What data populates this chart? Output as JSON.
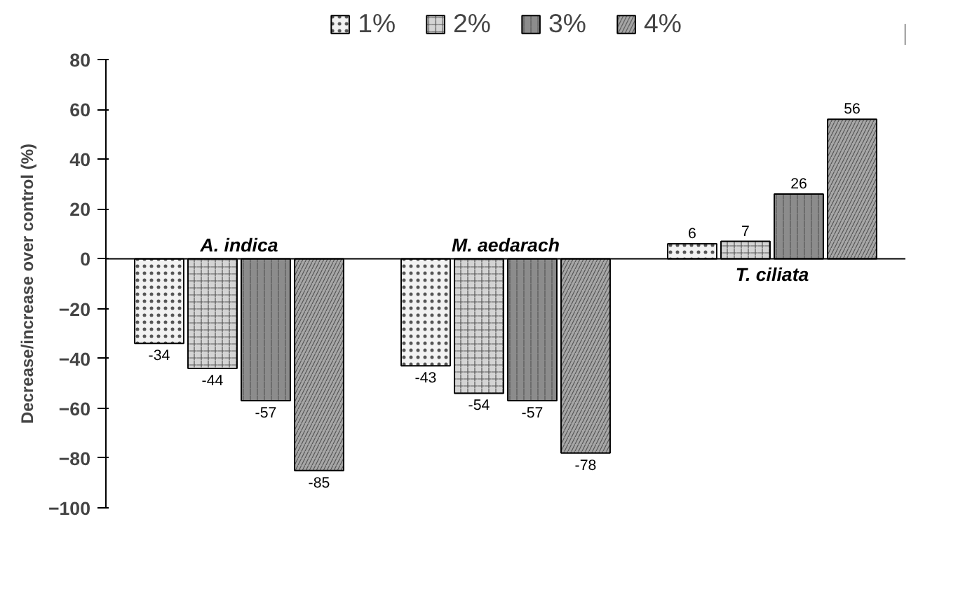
{
  "chart_data": {
    "type": "bar",
    "ylabel": "Decrease/increase over control (%)",
    "categories": [
      "A. indica",
      "M. aedarach",
      "T. ciliata"
    ],
    "series": [
      {
        "name": "1%",
        "color": "#f2f2f2",
        "values": [
          -34,
          -43,
          6
        ]
      },
      {
        "name": "2%",
        "color": "#d4d4d4",
        "values": [
          -44,
          -54,
          7
        ]
      },
      {
        "name": "3%",
        "color": "#8c8c8c",
        "values": [
          -57,
          -57,
          26
        ]
      },
      {
        "name": "4%",
        "color": "#a6a6a6",
        "values": [
          -85,
          -78,
          56
        ]
      }
    ],
    "ylim": [
      -100,
      80
    ],
    "yticks": [
      -100,
      -80,
      -60,
      -40,
      -20,
      0,
      20,
      40,
      60,
      80
    ],
    "data_labels": true,
    "grid": false,
    "legend": "top",
    "tick_labels": "y"
  }
}
